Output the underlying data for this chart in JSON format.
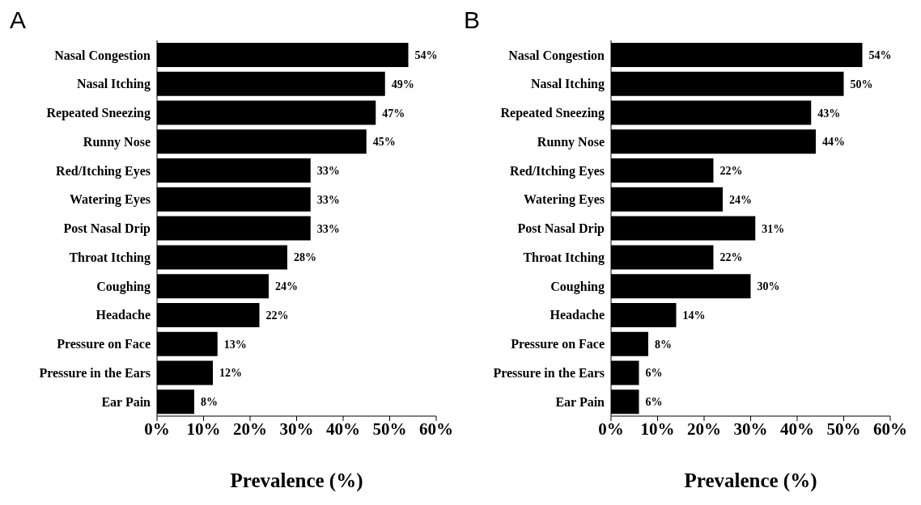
{
  "chart_data": [
    {
      "type": "bar",
      "orientation": "horizontal",
      "title": "A",
      "xlabel": "Prevalence (%)",
      "categories": [
        "Nasal Congestion",
        "Nasal Itching",
        "Repeated Sneezing",
        "Runny Nose",
        "Red/Itching Eyes",
        "Watering Eyes",
        "Post Nasal Drip",
        "Throat Itching",
        "Coughing",
        "Headache",
        "Pressure on Face",
        "Pressure in the Ears",
        "Ear Pain"
      ],
      "values": [
        54,
        49,
        47,
        45,
        33,
        33,
        33,
        28,
        24,
        22,
        13,
        12,
        8
      ],
      "value_labels": [
        "54%",
        "49%",
        "47%",
        "45%",
        "33%",
        "33%",
        "33%",
        "28%",
        "24%",
        "22%",
        "13%",
        "12%",
        "8%"
      ],
      "color": "#000000",
      "xlim": [
        0,
        60
      ],
      "xticks": [
        {
          "value": 0,
          "label": "0%"
        },
        {
          "value": 10,
          "label": "10%"
        },
        {
          "value": 20,
          "label": "20%"
        },
        {
          "value": 30,
          "label": "30%"
        },
        {
          "value": 40,
          "label": "40%"
        },
        {
          "value": 50,
          "label": "50%"
        },
        {
          "value": 60,
          "label": "60%"
        }
      ],
      "grid": false,
      "legend": false
    },
    {
      "type": "bar",
      "orientation": "horizontal",
      "title": "B",
      "xlabel": "Prevalence (%)",
      "categories": [
        "Nasal Congestion",
        "Nasal Itching",
        "Repeated Sneezing",
        "Runny Nose",
        "Red/Itching Eyes",
        "Watering Eyes",
        "Post Nasal Drip",
        "Throat Itching",
        "Coughing",
        "Headache",
        "Pressure on Face",
        "Pressure in the Ears",
        "Ear Pain"
      ],
      "values": [
        54,
        50,
        43,
        44,
        22,
        24,
        31,
        22,
        30,
        14,
        8,
        6,
        6
      ],
      "value_labels": [
        "54%",
        "50%",
        "43%",
        "44%",
        "22%",
        "24%",
        "31%",
        "22%",
        "30%",
        "14%",
        "8%",
        "6%",
        "6%"
      ],
      "color": "#000000",
      "xlim": [
        0,
        60
      ],
      "xticks": [
        {
          "value": 0,
          "label": "0%"
        },
        {
          "value": 10,
          "label": "10%"
        },
        {
          "value": 20,
          "label": "20%"
        },
        {
          "value": 30,
          "label": "30%"
        },
        {
          "value": 40,
          "label": "40%"
        },
        {
          "value": 50,
          "label": "50%"
        },
        {
          "value": 60,
          "label": "60%"
        }
      ],
      "grid": false,
      "legend": false
    }
  ]
}
